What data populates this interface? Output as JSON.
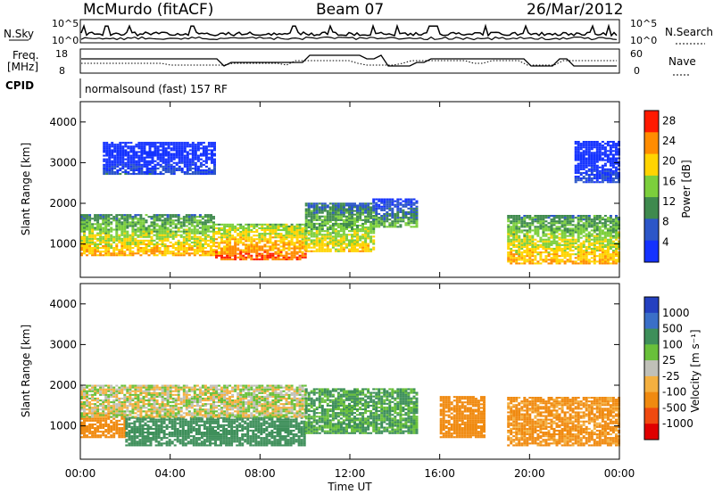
{
  "header": {
    "station": "McMurdo (fitACF)",
    "beam": "Beam 07",
    "date": "26/Mar/2012",
    "cpid_label": "CPID",
    "cpid_value": "normalsound (fast) 157 RF"
  },
  "strip_labels": {
    "nsky": "N.Sky",
    "nsearch": "N.Search",
    "freq_line1": "Freq.",
    "freq_line2": "[MHz]",
    "nave": "Nave",
    "nsky_ticks": [
      "10^5",
      "10^0"
    ],
    "nsearch_ticks": [
      "10^5",
      "10^0"
    ],
    "freq_ticks": [
      "18",
      "8"
    ],
    "nave_ticks": [
      "60",
      "0"
    ]
  },
  "chart_data": [
    {
      "type": "heatmap",
      "title": "",
      "xlabel": "Time UT",
      "ylabel": "Slant Range [km]",
      "xlim": [
        0,
        24
      ],
      "ylim": [
        180,
        4500
      ],
      "x_ticks": [
        "00:00",
        "04:00",
        "08:00",
        "12:00",
        "16:00",
        "20:00",
        "00:00"
      ],
      "y_ticks": [
        1000,
        2000,
        3000,
        4000
      ],
      "colorbar": {
        "label": "Power [dB]",
        "ticks": [
          4,
          8,
          12,
          16,
          20,
          24,
          28
        ],
        "range": [
          0,
          30
        ],
        "colors": [
          "#1432ff",
          "#2c56c8",
          "#3f8a4e",
          "#7ccf3c",
          "#ffd400",
          "#ff8c00",
          "#ff1a00"
        ]
      },
      "bands": [
        {
          "t0": 0,
          "t1": 6,
          "r0": 700,
          "r1": 1700,
          "value": 22
        },
        {
          "t0": 6,
          "t1": 10,
          "r0": 600,
          "r1": 1500,
          "value": 26
        },
        {
          "t0": 10,
          "t1": 13,
          "r0": 800,
          "r1": 2000,
          "value": 20
        },
        {
          "t0": 13,
          "t1": 15,
          "r0": 1400,
          "r1": 2100,
          "value": 14
        },
        {
          "t0": 19,
          "t1": 24,
          "r0": 500,
          "r1": 1700,
          "value": 22
        },
        {
          "t0": 1,
          "t1": 6,
          "r0": 2700,
          "r1": 3500,
          "value": 6
        },
        {
          "t0": 22,
          "t1": 24,
          "r0": 2500,
          "r1": 3500,
          "value": 6
        }
      ]
    },
    {
      "type": "heatmap",
      "title": "",
      "xlabel": "Time UT",
      "ylabel": "Slant Range [km]",
      "xlim": [
        0,
        24
      ],
      "ylim": [
        180,
        4500
      ],
      "x_ticks": [
        "00:00",
        "04:00",
        "08:00",
        "12:00",
        "16:00",
        "20:00",
        "00:00"
      ],
      "y_ticks": [
        1000,
        2000,
        3000,
        4000
      ],
      "colorbar": {
        "label": "Velocity [m s⁻¹]",
        "ticks": [
          "1000",
          "500",
          "100",
          "25",
          "-25",
          "-100",
          "-500",
          "-1000"
        ],
        "range": [
          -1000,
          1000
        ],
        "colors": [
          "#2440c0",
          "#3a6fc8",
          "#3e8f5a",
          "#69c03a",
          "#c0c0b8",
          "#f4b040",
          "#f08a10",
          "#f04a10",
          "#e00000"
        ]
      },
      "bands": [
        {
          "t0": 0,
          "t1": 2,
          "r0": 700,
          "r1": 1300,
          "value": -200
        },
        {
          "t0": 2,
          "t1": 10,
          "r0": 500,
          "r1": 1200,
          "value": 200
        },
        {
          "t0": 0,
          "t1": 10,
          "r0": 1200,
          "r1": 2000,
          "value": 0
        },
        {
          "t0": 10,
          "t1": 15,
          "r0": 800,
          "r1": 1900,
          "value": 120
        },
        {
          "t0": 16,
          "t1": 18,
          "r0": 700,
          "r1": 1700,
          "value": -200
        },
        {
          "t0": 19,
          "t1": 24,
          "r0": 500,
          "r1": 1700,
          "value": -150
        }
      ]
    }
  ]
}
